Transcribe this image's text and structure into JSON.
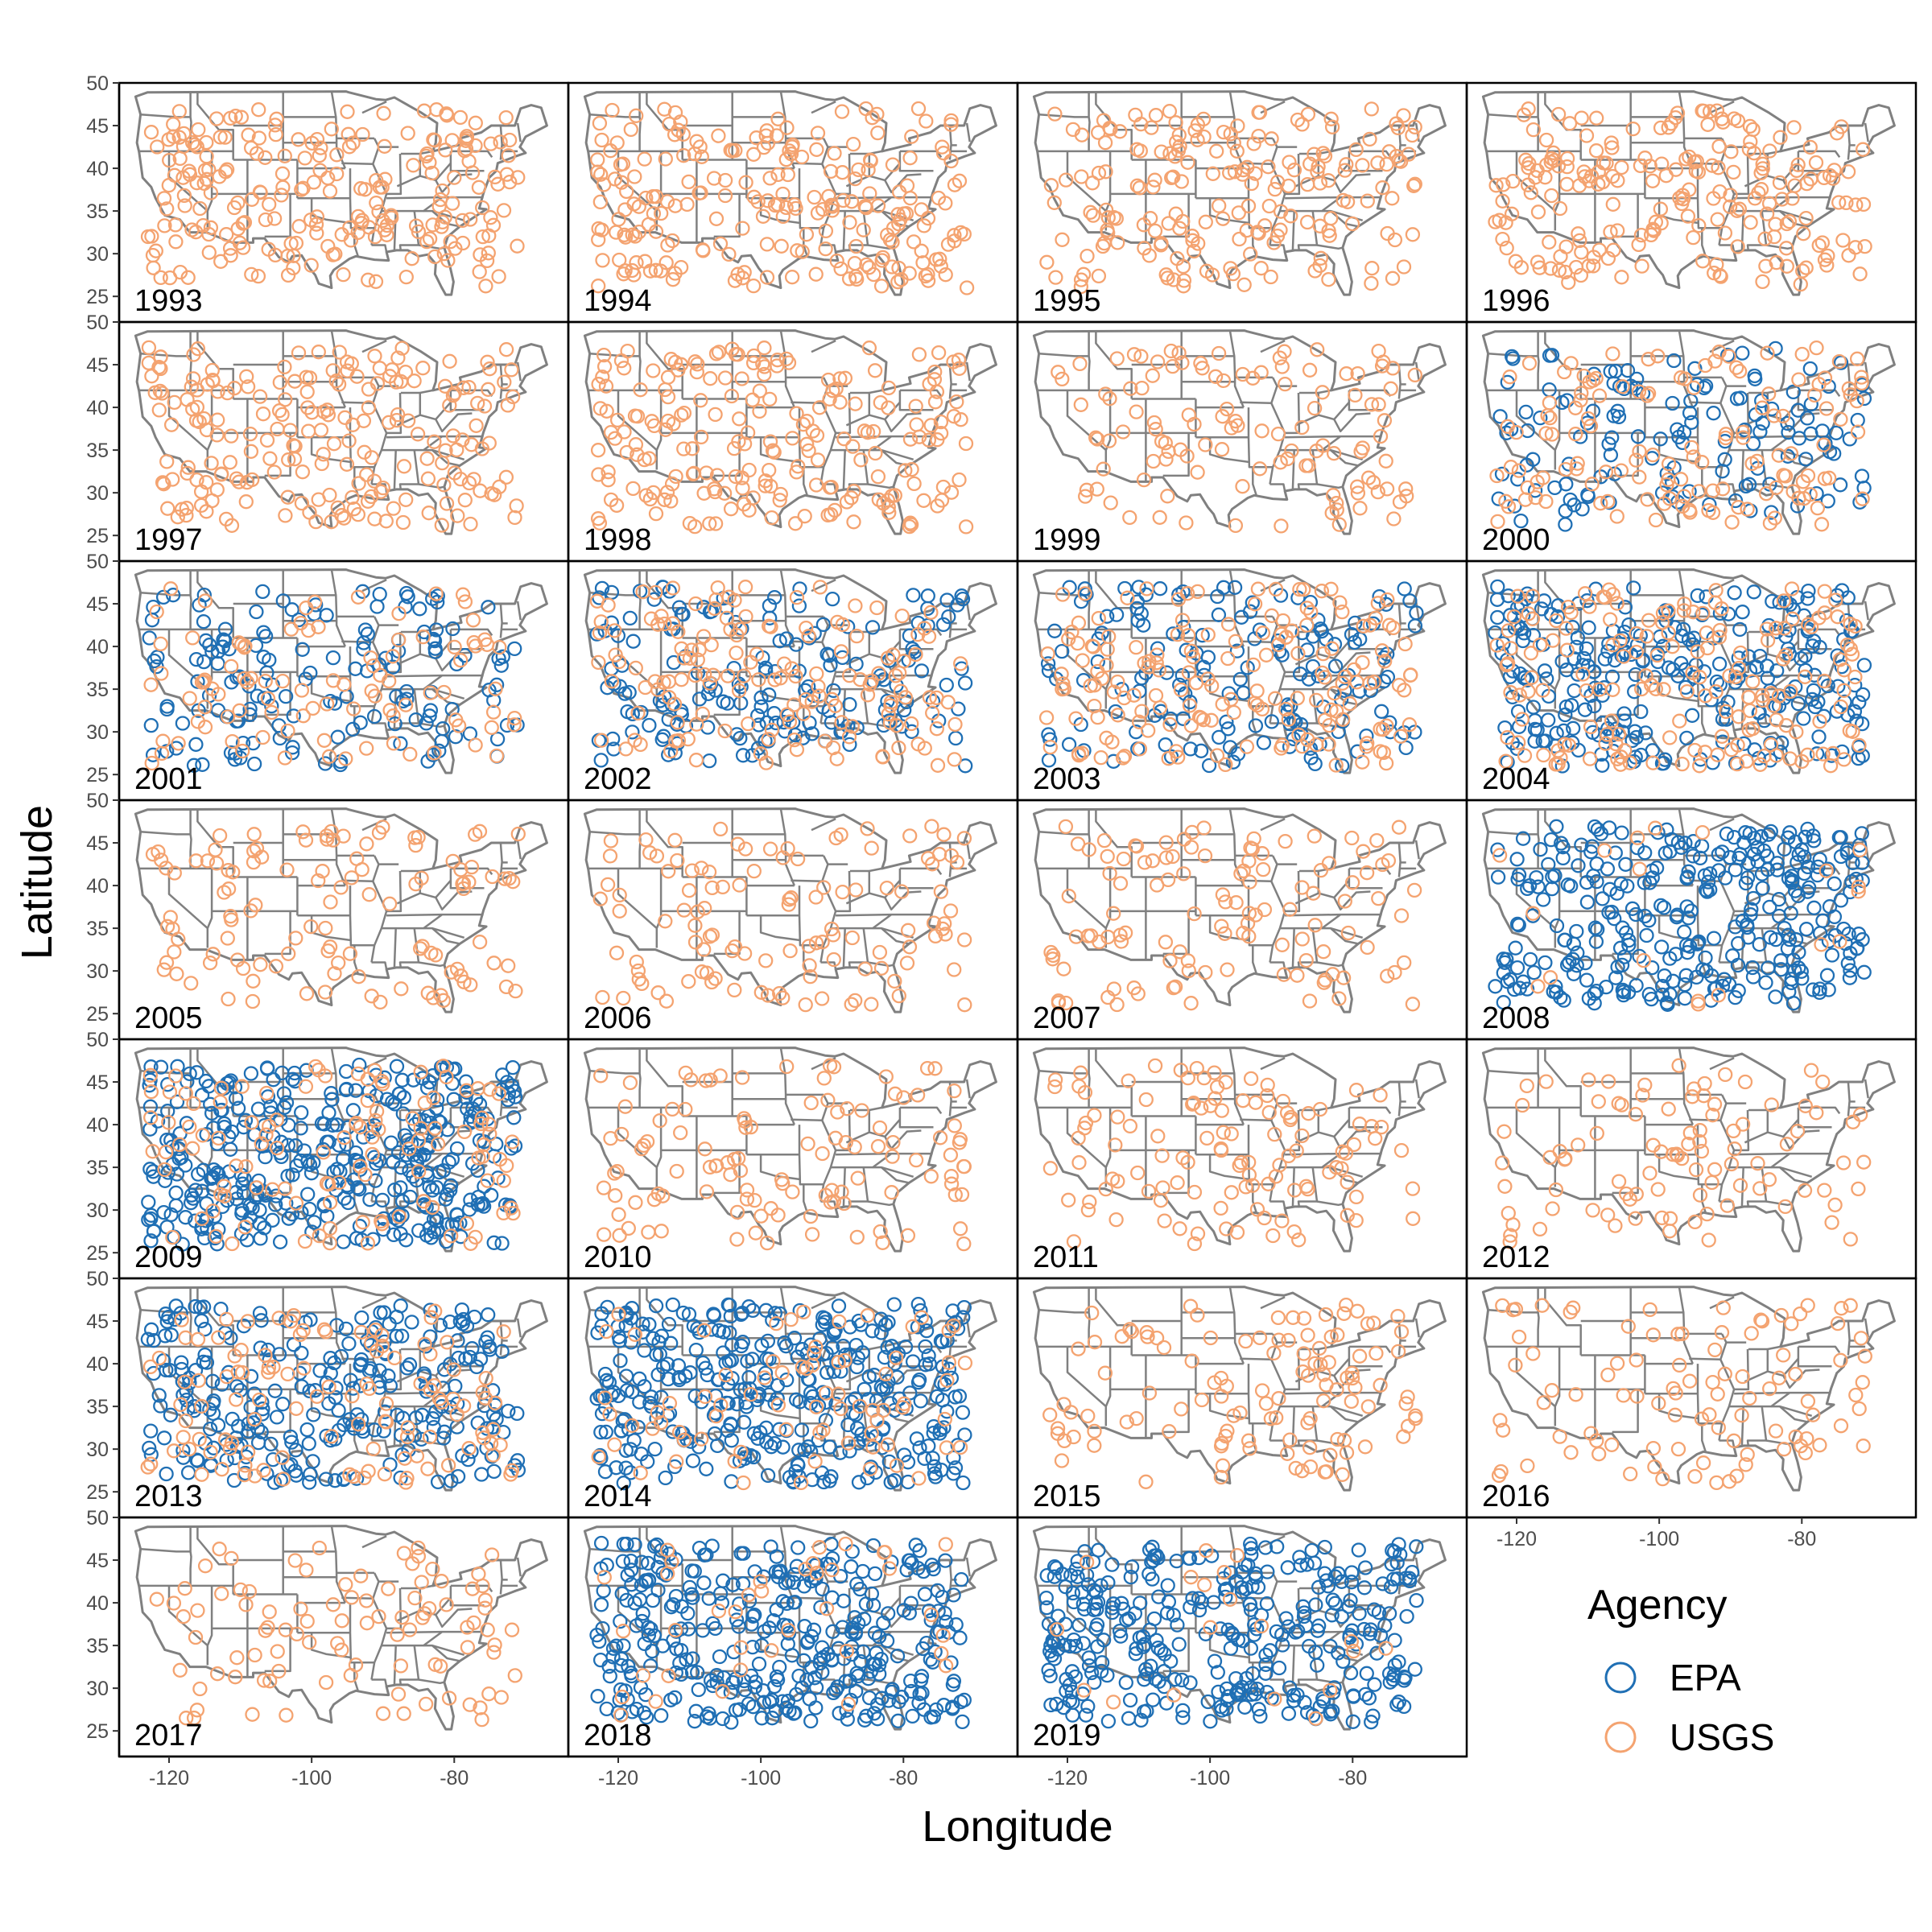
{
  "chart_data": {
    "type": "scatter",
    "xlabel": "Longitude",
    "ylabel": "Latitude",
    "xlim": [
      -127,
      -64
    ],
    "ylim": [
      22,
      50
    ],
    "x_ticks": [
      -120,
      -100,
      -80
    ],
    "x_tick_labels": [
      "-120",
      "-100",
      "-80"
    ],
    "y_ticks": [
      25,
      30,
      35,
      40,
      45,
      50
    ],
    "y_tick_labels": [
      "25",
      "30",
      "35",
      "40",
      "45",
      "50"
    ],
    "grid": false,
    "legend": {
      "title": "Agency",
      "placement": "bottom-right",
      "entries": [
        {
          "label": "EPA",
          "color": "#1f6fb4"
        },
        {
          "label": "USGS",
          "color": "#f4a370"
        }
      ]
    },
    "basemap": "US state outlines",
    "basemap_color": "#808080",
    "years": [
      "1993",
      "1994",
      "1995",
      "1996",
      "1997",
      "1998",
      "1999",
      "2000",
      "2001",
      "2002",
      "2003",
      "2004",
      "2005",
      "2006",
      "2007",
      "2008",
      "2009",
      "2010",
      "2011",
      "2012",
      "2013",
      "2014",
      "2015",
      "2016",
      "2017",
      "2018",
      "2019"
    ],
    "series": [
      {
        "name": "EPA",
        "color": "#1f6fb4",
        "extent_by_year": {
          "1993": 0,
          "1994": 0,
          "1995": 0,
          "1996": 0,
          "1997": 0,
          "1998": 0,
          "1999": 0,
          "2000": 0.35,
          "2001": 0.4,
          "2002": 0.45,
          "2003": 0.4,
          "2004": 0.7,
          "2005": 0,
          "2006": 0,
          "2007": 0,
          "2008": 0.85,
          "2009": 1,
          "2010": 0,
          "2011": 0,
          "2012": 0,
          "2013": 0.7,
          "2014": 0.95,
          "2015": 0,
          "2016": 0,
          "2017": 0,
          "2018": 0.95,
          "2019": 0.9
        }
      },
      {
        "name": "USGS",
        "color": "#f4a370",
        "extent_by_year": {
          "1993": 0.6,
          "1994": 0.6,
          "1995": 0.5,
          "1996": 0.55,
          "1997": 0.55,
          "1998": 0.55,
          "1999": 0.3,
          "2000": 0.35,
          "2001": 0.25,
          "2002": 0.4,
          "2003": 0.45,
          "2004": 0.45,
          "2005": 0.3,
          "2006": 0.3,
          "2007": 0.3,
          "2008": 0.05,
          "2009": 0.3,
          "2010": 0.3,
          "2011": 0.3,
          "2012": 0.25,
          "2013": 0.3,
          "2014": 0.2,
          "2015": 0.3,
          "2016": 0.25,
          "2017": 0.25,
          "2018": 0.1,
          "2019": 0.05
        }
      }
    ]
  }
}
